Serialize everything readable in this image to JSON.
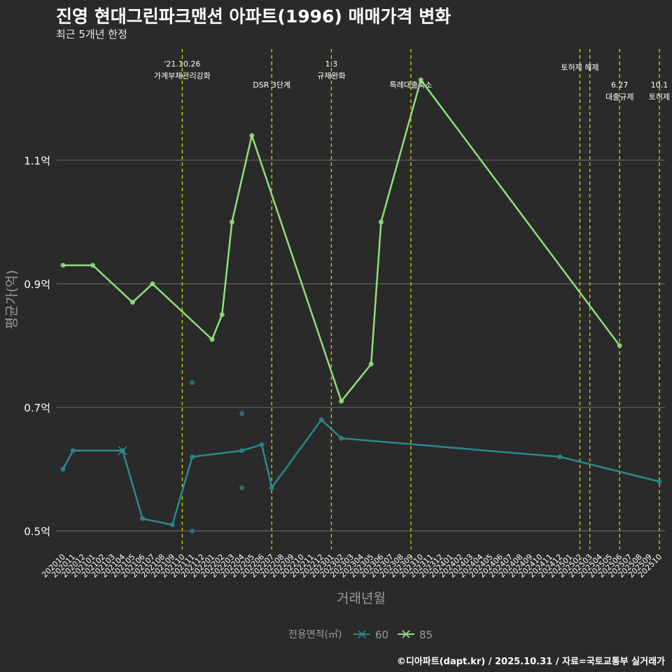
{
  "title": "진영 현대그린파크맨션 아파트(1996) 매매가격 변화",
  "subtitle": "최근 5개년 한정",
  "caption": "©디아파트(dapt.kr) / 2025.10.31 / 자료=국토교통부 실거래가",
  "colors": {
    "background": "#2b2a2b",
    "grid": "#6a6a6a",
    "event_line": "#d4d400",
    "s60": "#2a8a8a",
    "s85": "#8ee07a",
    "text": "#ffffff",
    "axis_title": "#9a9a9a"
  },
  "chart_data": {
    "type": "line",
    "title": "진영 현대그린파크맨션 아파트(1996) 매매가격 변화",
    "xlabel": "거래년월",
    "ylabel": "평균가(억)",
    "ylim": [
      0.47,
      1.28
    ],
    "yticks": [
      0.5,
      0.7,
      0.9,
      1.1
    ],
    "ytick_labels": [
      "0.5억",
      "0.7억",
      "0.9억",
      "1.1억"
    ],
    "grid": true,
    "legend": {
      "title": "전용면적(㎡)",
      "position": "bottom",
      "entries": [
        "60",
        "85"
      ]
    },
    "categories": [
      "202010",
      "202011",
      "202012",
      "202101",
      "202102",
      "202103",
      "202104",
      "202105",
      "202106",
      "202107",
      "202108",
      "202109",
      "202110",
      "202111",
      "202112",
      "202201",
      "202202",
      "202203",
      "202204",
      "202205",
      "202206",
      "202207",
      "202208",
      "202209",
      "202210",
      "202211",
      "202212",
      "202301",
      "202302",
      "202303",
      "202304",
      "202305",
      "202306",
      "202307",
      "202308",
      "202309",
      "202310",
      "202311",
      "202312",
      "202401",
      "202402",
      "202403",
      "202404",
      "202405",
      "202406",
      "202407",
      "202408",
      "202409",
      "202410",
      "202411",
      "202412",
      "202501",
      "202502",
      "202503",
      "202504",
      "202505",
      "202506",
      "202507",
      "202508",
      "202509",
      "202510"
    ],
    "series": [
      {
        "name": "60",
        "points": [
          [
            "202010",
            0.6
          ],
          [
            "202011",
            0.63
          ],
          [
            "202104",
            0.63
          ],
          [
            "202106",
            0.52
          ],
          [
            "202109",
            0.51
          ],
          [
            "202111",
            0.62
          ],
          [
            "202204",
            0.63
          ],
          [
            "202206",
            0.64
          ],
          [
            "202207",
            0.57
          ],
          [
            "202212",
            0.68
          ],
          [
            "202302",
            0.65
          ],
          [
            "202412",
            0.62
          ],
          [
            "202510",
            0.58
          ]
        ],
        "scatter": [
          [
            "202111",
            0.74
          ],
          [
            "202111",
            0.5
          ],
          [
            "202204",
            0.69
          ],
          [
            "202204",
            0.57
          ]
        ]
      },
      {
        "name": "85",
        "points": [
          [
            "202010",
            0.93
          ],
          [
            "202101",
            0.93
          ],
          [
            "202105",
            0.87
          ],
          [
            "202107",
            0.9
          ],
          [
            "202201",
            0.81
          ],
          [
            "202202",
            0.85
          ],
          [
            "202203",
            1.0
          ],
          [
            "202205",
            1.14
          ],
          [
            "202302",
            0.71
          ],
          [
            "202305",
            0.77
          ],
          [
            "202306",
            1.0
          ],
          [
            "202310",
            1.23
          ],
          [
            "202506",
            0.8
          ]
        ]
      }
    ],
    "events": [
      {
        "month": "202110",
        "label_lines": [
          "'21.10.26",
          "가계부채관리강화"
        ],
        "row": 0
      },
      {
        "month": "202207",
        "label_lines": [
          "DSR 3단계"
        ],
        "row": 2
      },
      {
        "month": "202301",
        "label_lines": [
          "1.3",
          "규제완화"
        ],
        "row": 0
      },
      {
        "month": "202309",
        "label_lines": [
          "특례대출축소"
        ],
        "row": 2
      },
      {
        "month": "202502",
        "label_lines": [
          "토허제 해제"
        ],
        "row": 1
      },
      {
        "month": "202503",
        "label_lines": [],
        "row": 1
      },
      {
        "month": "202506",
        "label_lines": [
          "6.27",
          "대출규제"
        ],
        "row": 2
      },
      {
        "month": "202510",
        "label_lines": [
          "10.1",
          "토허제"
        ],
        "row": 2
      }
    ]
  }
}
